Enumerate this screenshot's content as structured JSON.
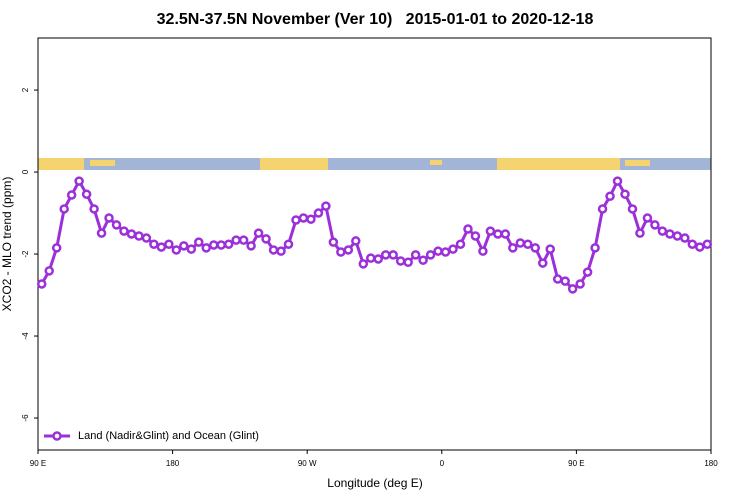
{
  "chart_data": {
    "type": "line",
    "title": "32.5N-37.5N November (Ver 10)   2015-01-01 to 2020-12-18",
    "x_label": "Longitude (deg E)",
    "y_label": "XCO2 - MLO trend (ppm)",
    "x": [
      92.5,
      97.5,
      102.5,
      107.5,
      112.5,
      117.5,
      122.5,
      127.5,
      132.5,
      137.5,
      142.5,
      147.5,
      152.5,
      157.5,
      162.5,
      167.5,
      172.5,
      177.5,
      182.5,
      187.5,
      192.5,
      197.5,
      202.5,
      207.5,
      212.5,
      217.5,
      222.5,
      227.5,
      232.5,
      237.5,
      242.5,
      247.5,
      252.5,
      257.5,
      262.5,
      267.5,
      272.5,
      277.5,
      282.5,
      287.5,
      292.5,
      297.5,
      302.5,
      307.5,
      312.5,
      317.5,
      322.5,
      327.5,
      332.5,
      337.5,
      342.5,
      347.5,
      352.5,
      357.5,
      362.5,
      367.5,
      372.5,
      377.5,
      382.5,
      387.5,
      392.5,
      397.5,
      402.5,
      407.5,
      412.5,
      417.5,
      422.5,
      427.5,
      432.5,
      437.5,
      442.5,
      447.5,
      452.5,
      457.5,
      462.5,
      467.5,
      472.5,
      477.5,
      482.5,
      487.5,
      492.5,
      497.5,
      502.5,
      507.5,
      512.5,
      517.5,
      522.5,
      527.5,
      532.5,
      537.5
    ],
    "series": [
      {
        "name": "Land (Nadir&Glint) and Ocean (Glint)",
        "color": "#9b30d9",
        "values": [
          -2.73,
          -2.41,
          -1.85,
          -0.9,
          -0.56,
          -0.22,
          -0.54,
          -0.9,
          -1.49,
          -1.12,
          -1.29,
          -1.44,
          -1.51,
          -1.56,
          -1.61,
          -1.76,
          -1.83,
          -1.76,
          -1.9,
          -1.8,
          -1.88,
          -1.71,
          -1.85,
          -1.78,
          -1.78,
          -1.76,
          -1.66,
          -1.66,
          -1.8,
          -1.49,
          -1.63,
          -1.9,
          -1.93,
          -1.76,
          -1.17,
          -1.12,
          -1.15,
          -1.0,
          -0.83,
          -1.71,
          -1.95,
          -1.9,
          -1.68,
          -2.24,
          -2.1,
          -2.12,
          -2.02,
          -2.02,
          -2.17,
          -2.2,
          -2.02,
          -2.15,
          -2.02,
          -1.93,
          -1.95,
          -1.88,
          -1.76,
          -1.39,
          -1.56,
          -1.93,
          -1.44,
          -1.51,
          -1.51,
          -1.85,
          -1.73,
          -1.76,
          -1.85,
          -2.22,
          -1.88,
          -2.61,
          -2.66,
          -2.85,
          -2.73,
          -2.44,
          -1.85,
          -0.9,
          -0.59,
          -0.22,
          -0.54,
          -0.9,
          -1.49,
          -1.12,
          -1.29,
          -1.44,
          -1.51,
          -1.56,
          -1.61,
          -1.76,
          -1.83,
          -1.76
        ]
      }
    ],
    "xlim": [
      90,
      540
    ],
    "xticks": [
      {
        "value": 90,
        "label": "90 E"
      },
      {
        "value": 180,
        "label": "180"
      },
      {
        "value": 270,
        "label": "90 W"
      },
      {
        "value": 360,
        "label": "0"
      },
      {
        "value": 450,
        "label": "90 E"
      },
      {
        "value": 540,
        "label": "180"
      }
    ],
    "ylim": [
      -6.78,
      3.27
    ],
    "yticks": [
      -6,
      -4,
      -2,
      0,
      2
    ],
    "legend": "bottom-left"
  }
}
